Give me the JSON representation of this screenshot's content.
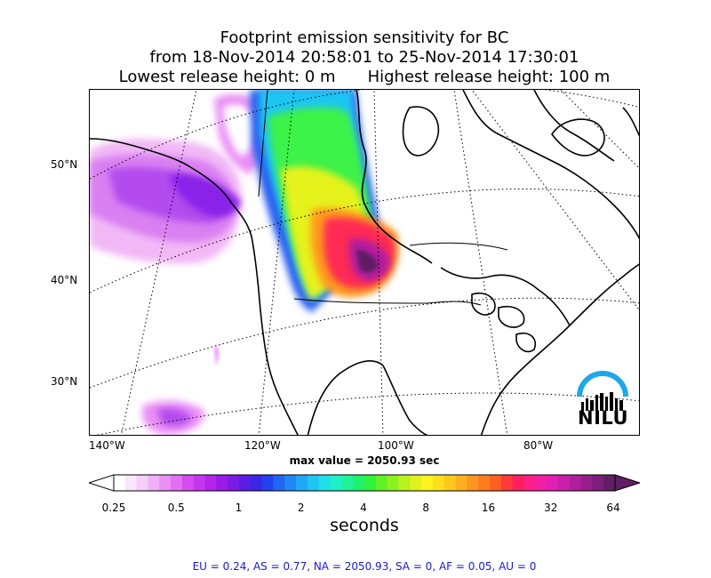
{
  "title": {
    "line1": "Footprint emission sensitivity for BC",
    "line2": "from 18-Nov-2014 20:58:01 to 25-Nov-2014 17:30:01",
    "lowest": "Lowest release height: 0 m",
    "highest": "Highest release height: 100 m"
  },
  "map": {
    "lat_labels": [
      "50°N",
      "40°N",
      "30°N"
    ],
    "lon_labels": [
      "140°W",
      "120°W",
      "100°W",
      "80°W"
    ],
    "max_value": "max value = 2050.93 sec"
  },
  "colorbar": {
    "labels": [
      "0.25",
      "0.5",
      "1",
      "2",
      "4",
      "8",
      "16",
      "32",
      "64"
    ],
    "units": "seconds",
    "colors": [
      "#ffffff",
      "#fbe7fd",
      "#f6cdfb",
      "#f0b0f8",
      "#ea90f5",
      "#e270f3",
      "#d54cf0",
      "#c437ee",
      "#b324ec",
      "#9a1ae8",
      "#7c1ae6",
      "#5a1de4",
      "#3a26e6",
      "#2540ee",
      "#2065f3",
      "#1f88f5",
      "#1fa8f5",
      "#1fc6f3",
      "#1fe0e8",
      "#1ff0c8",
      "#1ff29a",
      "#1ff26a",
      "#30f23a",
      "#60f222",
      "#8cf21f",
      "#b8f21f",
      "#dff21f",
      "#fff21f",
      "#ffe01f",
      "#ffc81f",
      "#ffb01f",
      "#ff961f",
      "#ff7c1f",
      "#ff601f",
      "#ff3a3a",
      "#ff1f60",
      "#ff1f88",
      "#f41fa6",
      "#e21fb4",
      "#c81fac",
      "#b01f9e",
      "#961f8c",
      "#7c1f7a",
      "#601f64"
    ]
  },
  "stats": "EU = 0.24,  AS = 0.77,  NA = 2050.93,  SA = 0,  AF = 0.05,  AU = 0",
  "logo": {
    "text": "NILU",
    "arc_color": "#1fa8e8"
  }
}
